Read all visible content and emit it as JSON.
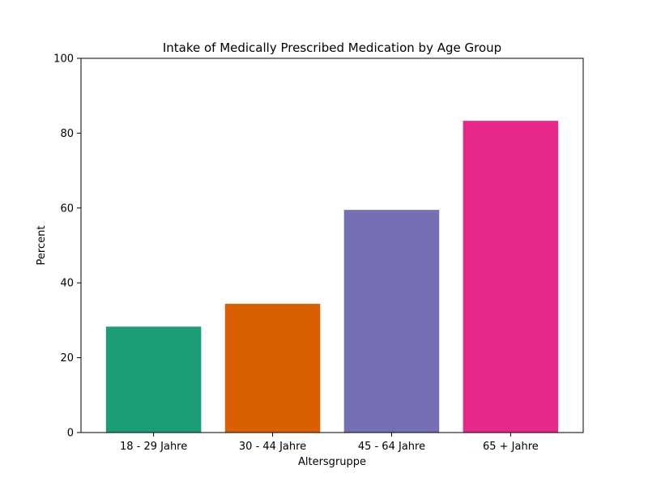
{
  "chart_data": {
    "type": "bar",
    "title": "Intake of Medically Prescribed Medication by Age Group",
    "xlabel": "Altersgruppe",
    "ylabel": "Percent",
    "categories": [
      "18 - 29 Jahre",
      "30 - 44 Jahre",
      "45 - 64 Jahre",
      "65 + Jahre"
    ],
    "values": [
      28.3,
      34.4,
      59.5,
      83.3
    ],
    "colors": [
      "#1b9e77",
      "#d95f02",
      "#7570b3",
      "#e7298a"
    ],
    "ylim": [
      0,
      100
    ],
    "yticks": [
      0,
      20,
      40,
      60,
      80,
      100
    ],
    "ytick_labels": [
      "0",
      "20",
      "40",
      "60",
      "80",
      "100"
    ],
    "grid": false,
    "legend": "none"
  }
}
